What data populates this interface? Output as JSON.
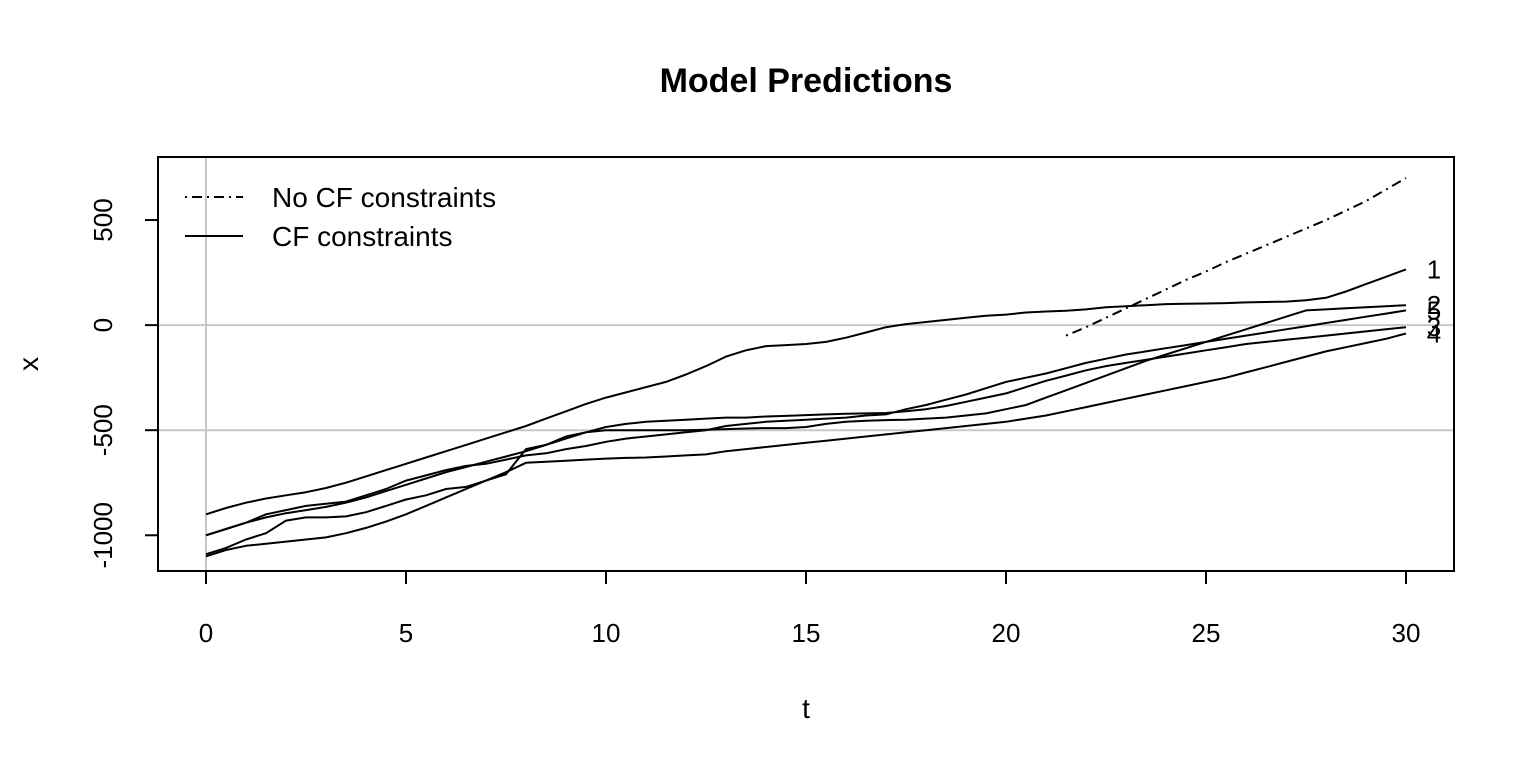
{
  "chart_data": {
    "type": "line",
    "title": "Model Predictions",
    "xlabel": "t",
    "ylabel": "x",
    "xlim": [
      -1.2,
      31.2
    ],
    "ylim": [
      -1170,
      800
    ],
    "xticks": [
      0,
      5,
      10,
      15,
      20,
      25,
      30
    ],
    "yticks": [
      -1000,
      -500,
      0,
      500
    ],
    "grid": {
      "reference_lines": {
        "x": [
          0
        ],
        "y": [
          0,
          -500
        ]
      },
      "color": "#c8c8c8"
    },
    "legend": {
      "placement": "top-left",
      "entries": [
        {
          "label": "No CF constraints",
          "style": "dotdash"
        },
        {
          "label": "CF constraints",
          "style": "solid"
        }
      ]
    },
    "series": [
      {
        "name": "1",
        "style": "solid",
        "x": [
          0,
          0.5,
          1,
          1.5,
          2,
          2.5,
          3,
          3.5,
          4,
          4.5,
          5,
          5.5,
          6,
          6.5,
          7,
          7.5,
          8,
          8.5,
          9,
          9.5,
          10,
          10.5,
          11,
          11.5,
          12,
          12.5,
          13,
          13.5,
          14,
          14.5,
          15,
          15.5,
          16,
          16.5,
          17,
          17.5,
          18,
          18.5,
          19,
          19.5,
          20,
          20.5,
          21,
          21.5,
          22,
          22.5,
          23,
          23.5,
          24,
          24.5,
          25,
          25.5,
          26,
          26.5,
          27,
          27.5,
          28,
          28.5,
          29,
          29.5,
          30
        ],
        "y": [
          -900,
          -870,
          -845,
          -825,
          -810,
          -795,
          -775,
          -750,
          -720,
          -690,
          -660,
          -630,
          -600,
          -570,
          -540,
          -510,
          -480,
          -445,
          -410,
          -375,
          -345,
          -320,
          -295,
          -270,
          -235,
          -195,
          -150,
          -120,
          -100,
          -95,
          -90,
          -80,
          -60,
          -35,
          -10,
          5,
          15,
          25,
          35,
          45,
          50,
          60,
          65,
          68,
          75,
          85,
          90,
          95,
          100,
          102,
          103,
          105,
          108,
          110,
          112,
          118,
          130,
          160,
          195,
          230,
          265
        ]
      },
      {
        "name": "2",
        "style": "solid",
        "x": [
          0,
          0.5,
          1,
          1.5,
          2,
          2.5,
          3,
          3.5,
          4,
          4.5,
          5,
          5.5,
          6,
          6.5,
          7,
          7.5,
          8,
          8.5,
          9,
          9.5,
          10,
          10.5,
          11,
          11.5,
          12,
          12.5,
          13,
          13.5,
          14,
          14.5,
          15,
          15.5,
          16,
          16.5,
          17,
          17.5,
          18,
          18.5,
          19,
          19.5,
          20,
          20.5,
          21,
          21.5,
          22,
          22.5,
          23,
          23.5,
          24,
          24.5,
          25,
          25.5,
          26,
          26.5,
          27,
          27.5,
          28,
          28.5,
          29,
          29.5,
          30
        ],
        "y": [
          -1090,
          -1060,
          -1020,
          -990,
          -930,
          -915,
          -915,
          -910,
          -890,
          -860,
          -830,
          -810,
          -780,
          -770,
          -740,
          -710,
          -590,
          -570,
          -530,
          -510,
          -500,
          -500,
          -500,
          -500,
          -500,
          -498,
          -495,
          -492,
          -490,
          -490,
          -485,
          -470,
          -460,
          -455,
          -452,
          -450,
          -445,
          -440,
          -430,
          -420,
          -400,
          -380,
          -345,
          -310,
          -275,
          -240,
          -205,
          -170,
          -140,
          -110,
          -80,
          -50,
          -20,
          10,
          40,
          70,
          75,
          80,
          85,
          90,
          95
        ]
      },
      {
        "name": "3",
        "style": "solid",
        "x": [
          0,
          0.5,
          1,
          1.5,
          2,
          2.5,
          3,
          3.5,
          4,
          4.5,
          5,
          5.5,
          6,
          6.5,
          7,
          7.5,
          8,
          8.5,
          9,
          9.5,
          10,
          10.5,
          11,
          11.5,
          12,
          12.5,
          13,
          13.5,
          14,
          14.5,
          15,
          15.5,
          16,
          16.5,
          17,
          17.5,
          18,
          18.5,
          19,
          19.5,
          20,
          20.5,
          21,
          21.5,
          22,
          22.5,
          23,
          23.5,
          24,
          24.5,
          25,
          25.5,
          26,
          26.5,
          27,
          27.5,
          28,
          28.5,
          29,
          29.5,
          30
        ],
        "y": [
          -1000,
          -970,
          -940,
          -915,
          -895,
          -880,
          -865,
          -845,
          -820,
          -790,
          -760,
          -730,
          -700,
          -675,
          -650,
          -625,
          -600,
          -570,
          -540,
          -510,
          -485,
          -470,
          -460,
          -455,
          -450,
          -445,
          -440,
          -440,
          -435,
          -432,
          -428,
          -425,
          -422,
          -420,
          -418,
          -410,
          -400,
          -385,
          -365,
          -345,
          -325,
          -295,
          -265,
          -240,
          -215,
          -195,
          -180,
          -165,
          -150,
          -135,
          -120,
          -105,
          -90,
          -80,
          -70,
          -60,
          -50,
          -40,
          -30,
          -20,
          -10
        ]
      },
      {
        "name": "4",
        "style": "solid",
        "x": [
          0,
          0.5,
          1,
          1.5,
          2,
          2.5,
          3,
          3.5,
          4,
          4.5,
          5,
          5.5,
          6,
          6.5,
          7,
          7.5,
          8,
          8.5,
          9,
          9.5,
          10,
          10.5,
          11,
          11.5,
          12,
          12.5,
          13,
          13.5,
          14,
          14.5,
          15,
          15.5,
          16,
          16.5,
          17,
          17.5,
          18,
          18.5,
          19,
          19.5,
          20,
          20.5,
          21,
          21.5,
          22,
          22.5,
          23,
          23.5,
          24,
          24.5,
          25,
          25.5,
          26,
          26.5,
          27,
          27.5,
          28,
          28.5,
          29,
          29.5,
          30
        ],
        "y": [
          -1100,
          -1070,
          -1050,
          -1040,
          -1030,
          -1020,
          -1010,
          -990,
          -965,
          -935,
          -900,
          -860,
          -820,
          -780,
          -740,
          -700,
          -655,
          -650,
          -645,
          -640,
          -635,
          -632,
          -630,
          -625,
          -620,
          -615,
          -600,
          -590,
          -580,
          -570,
          -560,
          -550,
          -540,
          -530,
          -520,
          -510,
          -500,
          -490,
          -480,
          -470,
          -460,
          -445,
          -430,
          -410,
          -390,
          -370,
          -350,
          -330,
          -310,
          -290,
          -270,
          -250,
          -225,
          -200,
          -175,
          -150,
          -125,
          -105,
          -85,
          -65,
          -40
        ]
      },
      {
        "name": "5",
        "style": "solid",
        "x": [
          0,
          0.5,
          1,
          1.5,
          2,
          2.5,
          3,
          3.5,
          4,
          4.5,
          5,
          5.5,
          6,
          6.5,
          7,
          7.5,
          8,
          8.5,
          9,
          9.5,
          10,
          10.5,
          11,
          11.5,
          12,
          12.5,
          13,
          13.5,
          14,
          14.5,
          15,
          15.5,
          16,
          16.5,
          17,
          17.5,
          18,
          18.5,
          19,
          19.5,
          20,
          20.5,
          21,
          21.5,
          22,
          22.5,
          23,
          23.5,
          24,
          24.5,
          25,
          25.5,
          26,
          26.5,
          27,
          27.5,
          28,
          28.5,
          29,
          29.5,
          30
        ],
        "y": [
          -1000,
          -970,
          -940,
          -900,
          -880,
          -860,
          -850,
          -840,
          -810,
          -780,
          -740,
          -715,
          -690,
          -670,
          -660,
          -640,
          -620,
          -610,
          -590,
          -575,
          -555,
          -540,
          -530,
          -520,
          -510,
          -500,
          -480,
          -470,
          -460,
          -455,
          -450,
          -445,
          -440,
          -430,
          -425,
          -400,
          -380,
          -355,
          -330,
          -300,
          -270,
          -250,
          -230,
          -205,
          -180,
          -160,
          -140,
          -125,
          -110,
          -95,
          -80,
          -65,
          -50,
          -35,
          -20,
          -5,
          10,
          25,
          40,
          55,
          70
        ]
      },
      {
        "name": "No CF constraints",
        "style": "dotdash",
        "x": [
          21.5,
          22,
          22.5,
          23,
          23.5,
          24,
          24.5,
          25,
          25.5,
          26,
          26.5,
          27,
          27.5,
          28,
          28.5,
          29,
          29.5,
          30
        ],
        "y": [
          -50,
          -10,
          35,
          80,
          125,
          170,
          215,
          255,
          300,
          340,
          380,
          420,
          460,
          500,
          545,
          590,
          645,
          700
        ]
      }
    ],
    "end_labels": [
      "1",
      "2",
      "3",
      "5",
      "4"
    ]
  }
}
